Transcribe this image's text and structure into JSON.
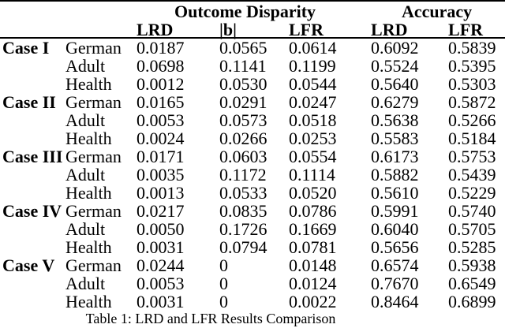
{
  "table": {
    "group_headers": [
      {
        "label": "Outcome Disparity",
        "colspan": 3
      },
      {
        "label": "Accuracy",
        "colspan": 2
      }
    ],
    "column_headers": [
      "LRD",
      "|b|",
      "LFR",
      "LRD",
      "LFR"
    ],
    "groups": [
      {
        "case": "Case I",
        "rows": [
          {
            "dataset": "German",
            "values": [
              "0.0187",
              "0.0565",
              "0.0614",
              "0.6092",
              "0.5839"
            ]
          },
          {
            "dataset": "Adult",
            "values": [
              "0.0698",
              "0.1141",
              "0.1199",
              "0.5524",
              "0.5395"
            ]
          },
          {
            "dataset": "Health",
            "values": [
              "0.0012",
              "0.0530",
              "0.0544",
              "0.5640",
              "0.5303"
            ]
          }
        ]
      },
      {
        "case": "Case II",
        "rows": [
          {
            "dataset": "German",
            "values": [
              "0.0165",
              "0.0291",
              "0.0247",
              "0.6279",
              "0.5872"
            ]
          },
          {
            "dataset": "Adult",
            "values": [
              "0.0053",
              "0.0573",
              "0.0518",
              "0.5638",
              "0.5266"
            ]
          },
          {
            "dataset": "Health",
            "values": [
              "0.0024",
              "0.0266",
              "0.0253",
              "0.5583",
              "0.5184"
            ]
          }
        ]
      },
      {
        "case": "Case III",
        "rows": [
          {
            "dataset": "German",
            "values": [
              "0.0171",
              "0.0603",
              "0.0554",
              "0.6173",
              "0.5753"
            ]
          },
          {
            "dataset": "Adult",
            "values": [
              "0.0035",
              "0.1172",
              "0.1114",
              "0.5882",
              "0.5439"
            ]
          },
          {
            "dataset": "Health",
            "values": [
              "0.0013",
              "0.0533",
              "0.0520",
              "0.5610",
              "0.5229"
            ]
          }
        ]
      },
      {
        "case": "Case IV",
        "rows": [
          {
            "dataset": "German",
            "values": [
              "0.0217",
              "0.0835",
              "0.0786",
              "0.5991",
              "0.5740"
            ]
          },
          {
            "dataset": "Adult",
            "values": [
              "0.0050",
              "0.1726",
              "0.1669",
              "0.6040",
              "0.5705"
            ]
          },
          {
            "dataset": "Health",
            "values": [
              "0.0031",
              "0.0794",
              "0.0781",
              "0.5656",
              "0.5285"
            ]
          }
        ]
      },
      {
        "case": "Case V",
        "rows": [
          {
            "dataset": "German",
            "values": [
              "0.0244",
              "0",
              "0.0148",
              "0.6574",
              "0.5938"
            ]
          },
          {
            "dataset": "Adult",
            "values": [
              "0.0053",
              "0",
              "0.0124",
              "0.7670",
              "0.6549"
            ]
          },
          {
            "dataset": "Health",
            "values": [
              "0.0031",
              "0",
              "0.0022",
              "0.8464",
              "0.6899"
            ]
          }
        ]
      }
    ],
    "caption": "Table 1: LRD and LFR Results Comparison"
  }
}
